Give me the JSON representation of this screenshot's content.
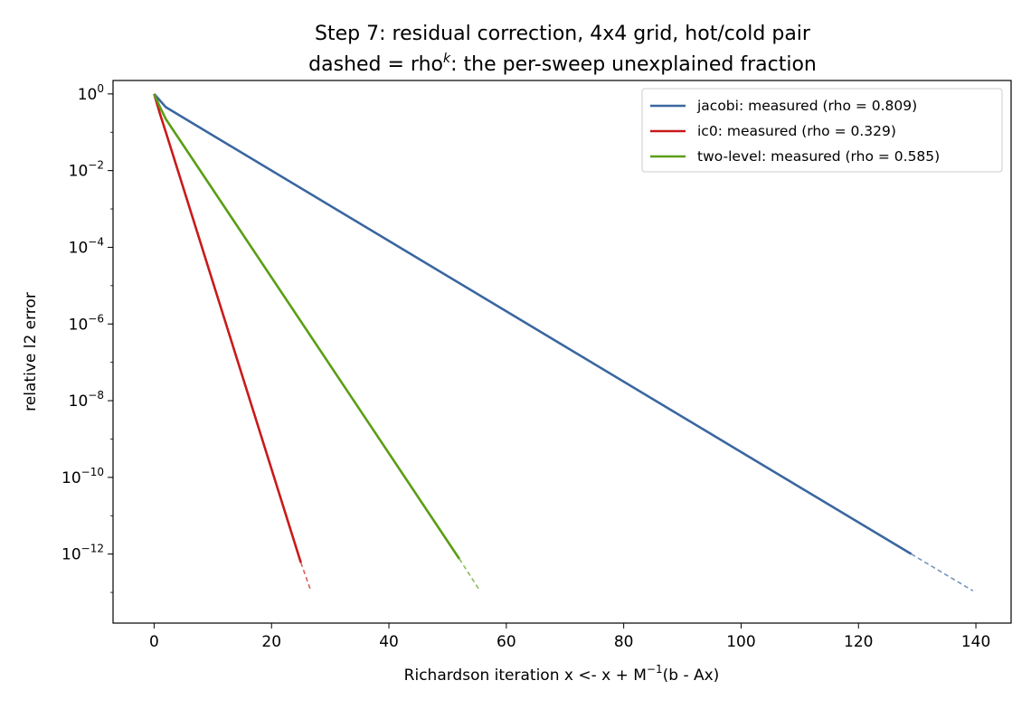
{
  "chart_data": {
    "type": "line",
    "title_line1": "Step 7: residual correction, 4x4 grid, hot/cold pair",
    "title_line2_prefix": "dashed = rho",
    "title_line2_sup": "k",
    "title_line2_suffix": ": the per-sweep unexplained fraction",
    "xlabel_prefix": "Richardson iteration  x <- x + M",
    "xlabel_sup": "−1",
    "xlabel_suffix": "(b - Ax)",
    "ylabel": "relative l2 error",
    "y_scale": "log",
    "xlim": [
      -7,
      146
    ],
    "ylim_exp": [
      -13.8,
      0.35
    ],
    "x_ticks": [
      0,
      20,
      40,
      60,
      80,
      100,
      120,
      140
    ],
    "x_tick_labels": [
      "0",
      "20",
      "40",
      "60",
      "80",
      "100",
      "120",
      "140"
    ],
    "y_ticks": [
      {
        "exp": 0,
        "base": "10",
        "sup": "0"
      },
      {
        "exp": -2,
        "base": "10",
        "sup": "−2"
      },
      {
        "exp": -4,
        "base": "10",
        "sup": "−4"
      },
      {
        "exp": -6,
        "base": "10",
        "sup": "−6"
      },
      {
        "exp": -8,
        "base": "10",
        "sup": "−8"
      },
      {
        "exp": -10,
        "base": "10",
        "sup": "−10"
      },
      {
        "exp": -12,
        "base": "10",
        "sup": "−12"
      }
    ],
    "legend_position": "top-right",
    "grid": false,
    "series": [
      {
        "name": "jacobi: measured (rho = 0.809)",
        "color": "#3a66a0",
        "measured": [
          [
            0,
            1
          ],
          [
            2,
            0.45
          ],
          [
            129,
            1e-12
          ]
        ],
        "dashed": [
          [
            129,
            1e-12
          ],
          [
            139.5,
            1.1e-13
          ]
        ]
      },
      {
        "name": "ic0: measured (rho = 0.329)",
        "color": "#c81a1a",
        "measured": [
          [
            0,
            1
          ],
          [
            1,
            0.3
          ],
          [
            2,
            0.1
          ],
          [
            25,
            6e-13
          ]
        ],
        "dashed": [
          [
            25,
            6e-13
          ],
          [
            26.7,
            1.1e-13
          ]
        ]
      },
      {
        "name": "two-level: measured (rho = 0.585)",
        "color": "#5a9e16",
        "measured": [
          [
            0,
            1
          ],
          [
            1,
            0.45
          ],
          [
            2,
            0.22
          ],
          [
            52,
            7.5e-13
          ]
        ],
        "dashed": [
          [
            52,
            7.5e-13
          ],
          [
            55.5,
            1.1e-13
          ]
        ]
      }
    ]
  }
}
